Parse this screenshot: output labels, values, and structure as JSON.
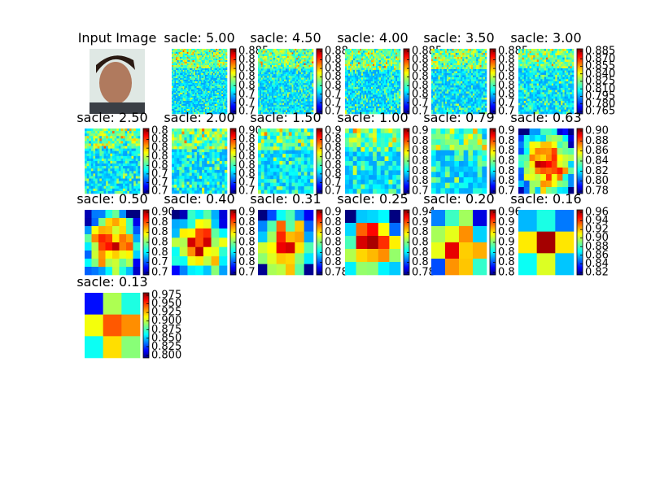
{
  "panels": [
    {
      "title": "Input Image"
    },
    {
      "title": "sacle: 5.00",
      "cbar_labels": [
        "0.885",
        "0.8",
        "0.8",
        "0.8",
        "0.8",
        "0.7",
        "0.7",
        "0.7"
      ]
    },
    {
      "title": "sacle: 4.50",
      "cbar_labels": [
        "0.88",
        "0.8",
        "0.8",
        "0.8",
        "0.8",
        "0.7",
        "0.7",
        "0.7"
      ]
    },
    {
      "title": "sacle: 4.00",
      "cbar_labels": [
        "0.885",
        "0.8",
        "0.8",
        "0.8",
        "0.8",
        "0.8",
        "0.7",
        "0.7"
      ]
    },
    {
      "title": "sacle: 3.50",
      "cbar_labels": [
        "0.885",
        "0.8",
        "0.8",
        "0.8",
        "0.8",
        "0.8",
        "0.7",
        "0.7"
      ]
    },
    {
      "title": "sacle: 3.00",
      "cbar_labels": [
        "0.885",
        "0.870",
        "0.855",
        "0.840",
        "0.825",
        "0.810",
        "0.795",
        "0.780",
        "0.765"
      ]
    },
    {
      "title": "sacle: 2.50",
      "cbar_labels": [
        "0.8",
        "0.8",
        "0.8",
        "0.8",
        "0.8",
        "0.7",
        "0.7",
        "0.7"
      ]
    },
    {
      "title": "sacle: 2.00",
      "cbar_labels": [
        "0.90",
        "0.8",
        "0.8",
        "0.8",
        "0.8",
        "0.8",
        "0.7",
        "0.7"
      ]
    },
    {
      "title": "sacle: 1.50",
      "cbar_labels": [
        "0.9",
        "0.8",
        "0.8",
        "0.8",
        "0.8",
        "0.8",
        "0.7",
        "0.7"
      ]
    },
    {
      "title": "sacle: 1.00",
      "cbar_labels": [
        "0.9",
        "0.8",
        "0.8",
        "0.8",
        "0.8",
        "0.8",
        "0.7"
      ]
    },
    {
      "title": "sacle: 0.79",
      "cbar_labels": [
        "0.9",
        "0.8",
        "0.8",
        "0.8",
        "0.8",
        "0.8",
        "0.7"
      ]
    },
    {
      "title": "sacle: 0.63",
      "cbar_labels": [
        "0.90",
        "0.88",
        "0.86",
        "0.84",
        "0.82",
        "0.80",
        "0.78"
      ]
    },
    {
      "title": "sacle: 0.50",
      "cbar_labels": [
        "0.90",
        "0.8",
        "0.8",
        "0.8",
        "0.8",
        "0.7",
        "0.7"
      ]
    },
    {
      "title": "sacle: 0.40",
      "cbar_labels": [
        "0.9",
        "0.8",
        "0.8",
        "0.8",
        "0.8",
        "0.8",
        "0.7"
      ]
    },
    {
      "title": "sacle: 0.31",
      "cbar_labels": [
        "0.9",
        "0.8",
        "0.8",
        "0.8",
        "0.8",
        "0.8",
        "0.78"
      ]
    },
    {
      "title": "sacle: 0.25",
      "cbar_labels": [
        "0.94",
        "0.9",
        "0.8",
        "0.8",
        "0.8",
        "0.8",
        "0.78"
      ]
    },
    {
      "title": "sacle: 0.20",
      "cbar_labels": [
        "0.96",
        "0.9",
        "0.9",
        "0.9",
        "0.8",
        "0.8",
        "0.8"
      ]
    },
    {
      "title": "sacle: 0.16",
      "cbar_labels": [
        "0.96",
        "0.94",
        "0.92",
        "0.90",
        "0.88",
        "0.86",
        "0.84",
        "0.82"
      ]
    },
    {
      "title": "sacle: 0.13",
      "cbar_labels": [
        "0.975",
        "0.950",
        "0.925",
        "0.900",
        "0.875",
        "0.850",
        "0.825",
        "0.800"
      ]
    }
  ]
}
